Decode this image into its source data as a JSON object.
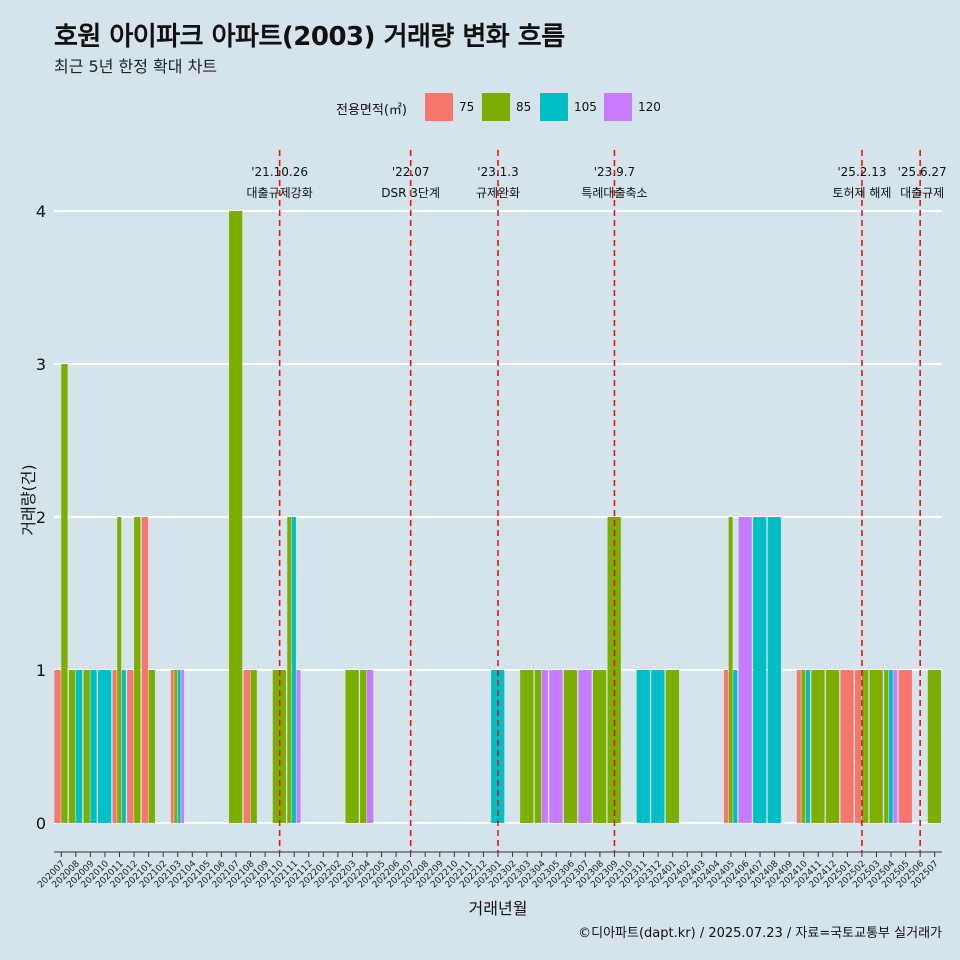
{
  "title": "호원 아이파크 아파트(2003) 거래량 변화 흐름",
  "subtitle": "최근 5년 한정 확대 차트",
  "caption": "©디아파트(dapt.kr) / 2025.07.23 / 자료=국토교통부 실거래가",
  "legend": {
    "title": "전용면적(㎡)",
    "items": [
      {
        "label": "75",
        "color": "#F8766D"
      },
      {
        "label": "85",
        "color": "#7CAE00"
      },
      {
        "label": "105",
        "color": "#00BFC4"
      },
      {
        "label": "120",
        "color": "#C77CFF"
      }
    ]
  },
  "chart_data": {
    "type": "bar",
    "xlabel": "거래년월",
    "ylabel": "거래량(건)",
    "ylim": [
      0,
      4
    ],
    "yticks": [
      0,
      1,
      2,
      3,
      4
    ],
    "grid": true,
    "legend_position": "top",
    "categories": [
      "202007",
      "202008",
      "202009",
      "202010",
      "202011",
      "202012",
      "202101",
      "202102",
      "202103",
      "202104",
      "202105",
      "202106",
      "202107",
      "202108",
      "202109",
      "202110",
      "202111",
      "202112",
      "202201",
      "202202",
      "202203",
      "202204",
      "202205",
      "202206",
      "202207",
      "202208",
      "202209",
      "202210",
      "202211",
      "202212",
      "202301",
      "202302",
      "202303",
      "202304",
      "202305",
      "202306",
      "202307",
      "202308",
      "202309",
      "202310",
      "202311",
      "202312",
      "202401",
      "202402",
      "202403",
      "202404",
      "202405",
      "202406",
      "202407",
      "202408",
      "202409",
      "202410",
      "202411",
      "202412",
      "202501",
      "202502",
      "202503",
      "202504",
      "202505",
      "202506",
      "202507"
    ],
    "series": [
      {
        "name": "75",
        "values": [
          1,
          0,
          0,
          0,
          1,
          1,
          2,
          0,
          1,
          0,
          0,
          0,
          0,
          1,
          0,
          0,
          0,
          0,
          0,
          0,
          0,
          0,
          0,
          0,
          0,
          0,
          0,
          0,
          0,
          0,
          0,
          0,
          0,
          0,
          0,
          0,
          0,
          0,
          0,
          0,
          0,
          0,
          0,
          0,
          0,
          0,
          1,
          0,
          0,
          0,
          0,
          1,
          0,
          0,
          1,
          1,
          0,
          0,
          1,
          0,
          0
        ]
      },
      {
        "name": "85",
        "values": [
          3,
          1,
          1,
          0,
          2,
          2,
          1,
          0,
          1,
          0,
          0,
          0,
          4,
          1,
          0,
          1,
          2,
          0,
          0,
          0,
          1,
          1,
          0,
          0,
          0,
          0,
          0,
          0,
          0,
          0,
          0,
          0,
          1,
          1,
          0,
          1,
          0,
          1,
          2,
          0,
          0,
          0,
          1,
          0,
          0,
          0,
          2,
          0,
          0,
          0,
          0,
          1,
          1,
          1,
          0,
          1,
          1,
          1,
          0,
          0,
          1
        ]
      },
      {
        "name": "105",
        "values": [
          0,
          1,
          1,
          1,
          1,
          0,
          0,
          0,
          1,
          0,
          0,
          0,
          0,
          0,
          0,
          0,
          2,
          0,
          0,
          0,
          0,
          0,
          0,
          0,
          0,
          0,
          0,
          0,
          0,
          0,
          1,
          0,
          0,
          0,
          0,
          0,
          0,
          0,
          0,
          0,
          1,
          1,
          0,
          0,
          0,
          0,
          1,
          0,
          2,
          2,
          0,
          1,
          0,
          0,
          0,
          0,
          0,
          1,
          0,
          0,
          0
        ]
      },
      {
        "name": "120",
        "values": [
          0,
          0,
          0,
          0,
          0,
          0,
          0,
          0,
          1,
          0,
          0,
          0,
          0,
          0,
          0,
          0,
          1,
          0,
          0,
          0,
          0,
          1,
          0,
          0,
          0,
          0,
          0,
          0,
          0,
          0,
          0,
          0,
          0,
          1,
          1,
          0,
          1,
          0,
          0,
          0,
          0,
          0,
          0,
          0,
          0,
          0,
          0,
          2,
          0,
          0,
          0,
          0,
          0,
          0,
          0,
          0,
          0,
          1,
          0,
          0,
          0
        ]
      }
    ],
    "annotations": [
      {
        "date_label": "'21.10.26",
        "text": "대출규제강화",
        "position": 15.5
      },
      {
        "date_label": "'22.07",
        "text": "DSR 3단계",
        "position": 24.5
      },
      {
        "date_label": "'23.1.3",
        "text": "규제완화",
        "position": 30.5
      },
      {
        "date_label": "'23.9.7",
        "text": "특례대출축소",
        "position": 38.5
      },
      {
        "date_label": "'25.2.13",
        "text": "토허제 해제",
        "position": 55.5
      },
      {
        "date_label": "'25.6.27",
        "text": "대출규제",
        "position": 59.5
      }
    ]
  }
}
